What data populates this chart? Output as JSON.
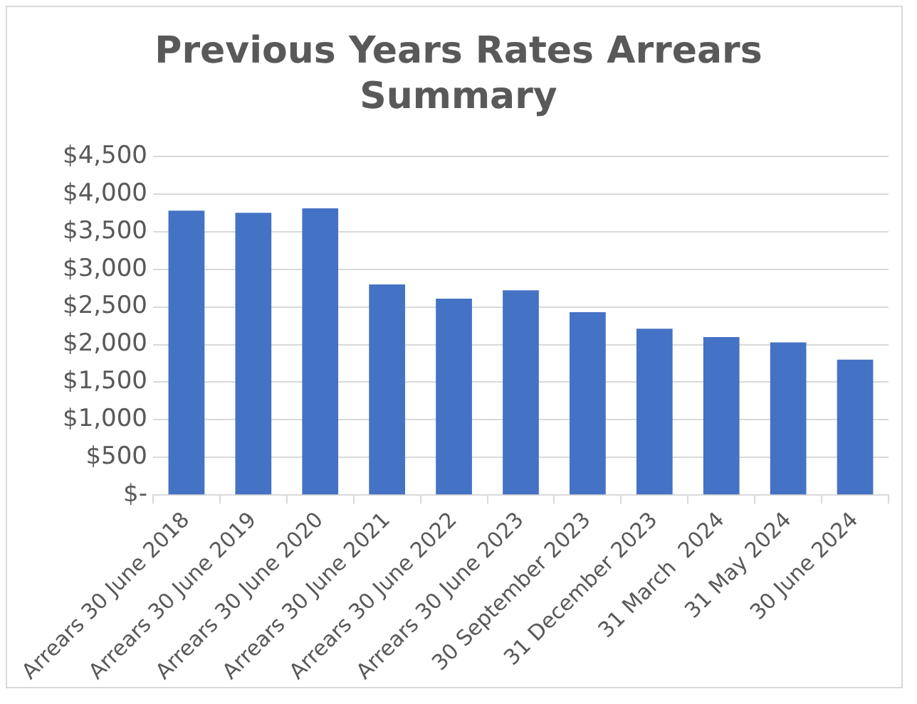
{
  "chart_data": {
    "type": "bar",
    "title": "Previous Years Rates Arrears Summary",
    "categories": [
      "Arrears 30 June 2018",
      "Arrears 30 June 2019",
      "Arrears 30 June 2020",
      "Arrears 30 June 2021",
      "Arrears 30 June 2022",
      "Arrears 30 June 2023",
      "30 September 2023",
      "31 December 2023",
      "31 March  2024",
      "31 May 2024",
      "30 June 2024"
    ],
    "values": [
      3780,
      3750,
      3810,
      2800,
      2610,
      2720,
      2430,
      2210,
      2100,
      2030,
      1800
    ],
    "color": "#4472c4",
    "ylim": [
      0,
      4500
    ],
    "yticks": [
      {
        "value": 0,
        "label": "$-"
      },
      {
        "value": 500,
        "label": "$500"
      },
      {
        "value": 1000,
        "label": "$1,000"
      },
      {
        "value": 1500,
        "label": "$1,500"
      },
      {
        "value": 2000,
        "label": "$2,000"
      },
      {
        "value": 2500,
        "label": "$2,500"
      },
      {
        "value": 3000,
        "label": "$3,000"
      },
      {
        "value": 3500,
        "label": "$3,500"
      },
      {
        "value": 4000,
        "label": "$4,000"
      },
      {
        "value": 4500,
        "label": "$4,500"
      }
    ],
    "grid": "y",
    "legend": false
  }
}
